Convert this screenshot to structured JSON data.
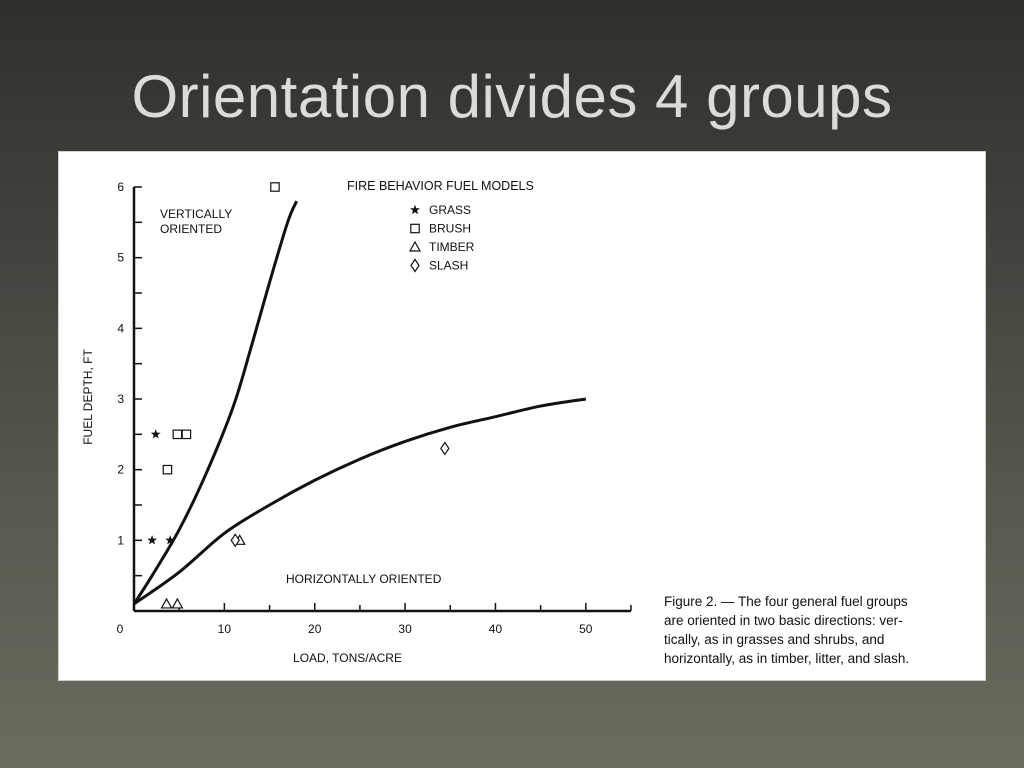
{
  "slide": {
    "title": "Orientation divides 4 groups"
  },
  "caption": {
    "text": "Figure 2. — The four general fuel groups\nare oriented in two basic directions: ver-\ntically, as in grasses and shrubs, and\nhorizontally, as in timber, litter, and slash."
  },
  "chart_data": {
    "type": "scatter",
    "title": "FIRE BEHAVIOR FUEL MODELS",
    "xlabel": "LOAD, TONS/ACRE",
    "ylabel": "FUEL DEPTH, FT",
    "xlim": [
      0,
      55
    ],
    "ylim": [
      0,
      6
    ],
    "x_ticks": [
      0,
      10,
      20,
      30,
      40,
      50
    ],
    "y_ticks": [
      1,
      2,
      3,
      4,
      5,
      6
    ],
    "x_minor_step": 5,
    "y_minor_step": 0.5,
    "grid": false,
    "legend_position": "top-center",
    "annotations": {
      "vertical": [
        "VERTICALLY",
        "ORIENTED"
      ],
      "horizontal": "HORIZONTALLY ORIENTED"
    },
    "series": [
      {
        "name": "GRASS",
        "marker": "star",
        "points": [
          [
            2.4,
            2.5
          ],
          [
            2.0,
            1.0
          ],
          [
            4.0,
            1.0
          ]
        ]
      },
      {
        "name": "BRUSH",
        "marker": "square",
        "points": [
          [
            15.6,
            6.0
          ],
          [
            4.8,
            2.5
          ],
          [
            5.8,
            2.5
          ],
          [
            3.7,
            2.0
          ]
        ]
      },
      {
        "name": "TIMBER",
        "marker": "triangle",
        "points": [
          [
            3.6,
            0.1
          ],
          [
            4.8,
            0.1
          ],
          [
            11.7,
            1.0
          ]
        ]
      },
      {
        "name": "SLASH",
        "marker": "diamond",
        "points": [
          [
            34.4,
            2.3
          ],
          [
            11.2,
            1.0
          ]
        ]
      }
    ],
    "curves": [
      {
        "points": [
          [
            0,
            0.1
          ],
          [
            2,
            0.5
          ],
          [
            5,
            1.15
          ],
          [
            8,
            1.95
          ],
          [
            11,
            2.9
          ],
          [
            13,
            3.75
          ],
          [
            15,
            4.65
          ],
          [
            17,
            5.5
          ],
          [
            18,
            5.8
          ]
        ]
      },
      {
        "points": [
          [
            0,
            0.1
          ],
          [
            5,
            0.55
          ],
          [
            10,
            1.1
          ],
          [
            15,
            1.5
          ],
          [
            20,
            1.85
          ],
          [
            25,
            2.15
          ],
          [
            30,
            2.4
          ],
          [
            35,
            2.6
          ],
          [
            40,
            2.75
          ],
          [
            45,
            2.9
          ],
          [
            50,
            3.0
          ]
        ]
      }
    ]
  }
}
